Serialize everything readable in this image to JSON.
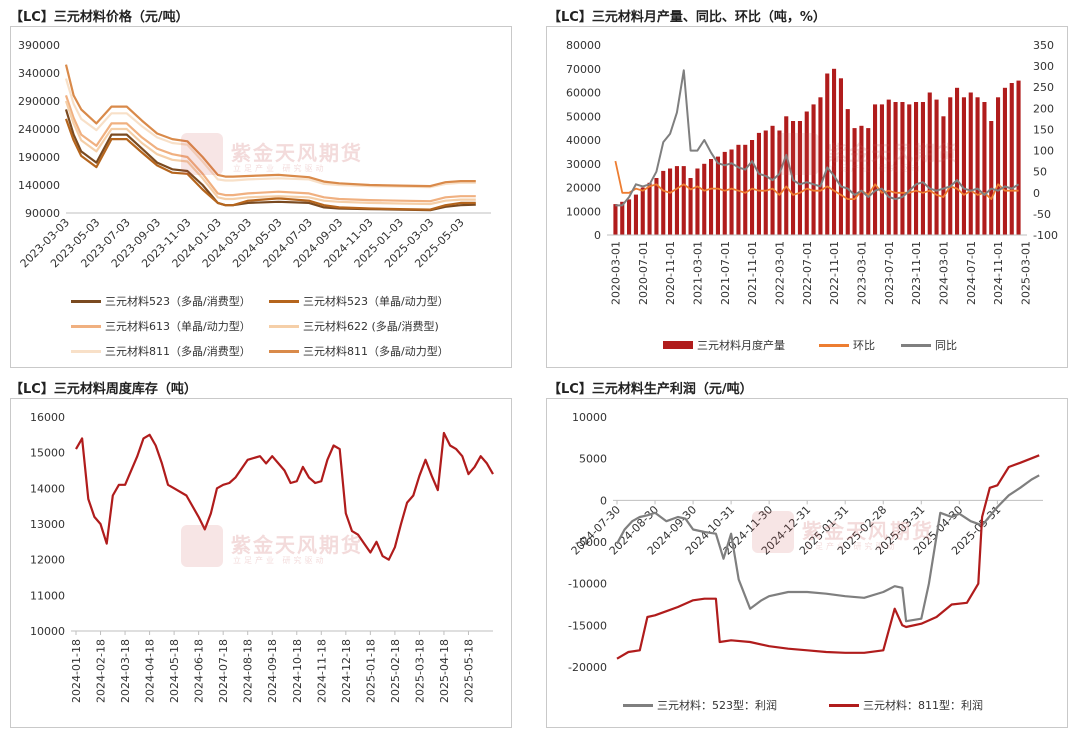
{
  "watermark": {
    "name": "紫金天风期货",
    "slogan": "立足产业 研究驱动"
  },
  "colors": {
    "dark_red": "#b01c1c",
    "orange": "#ed7d31",
    "gray": "#7f7f7f",
    "brown_dark": "#7a4a20",
    "brown": "#b5651d",
    "peach": "#f0b080",
    "light_peach": "#f5cfa8",
    "cream": "#f8e0c8",
    "copper": "#d98a4a"
  },
  "chart_data": [
    {
      "id": "price",
      "type": "line",
      "title": "【LC】三元材料价格（元/吨）",
      "ylim": [
        90000,
        390000
      ],
      "yticks": [
        90000,
        140000,
        190000,
        240000,
        290000,
        340000,
        390000
      ],
      "xticks": [
        "2023-03-03",
        "2023-05-03",
        "2023-07-03",
        "2023-09-03",
        "2023-11-03",
        "2024-01-03",
        "2024-03-03",
        "2024-05-03",
        "2024-07-03",
        "2024-09-03",
        "2024-11-03",
        "2025-01-03",
        "2025-03-03",
        "2025-05-03"
      ],
      "xrange": [
        0,
        28
      ],
      "series": [
        {
          "name": "三元材料523（多晶/消费型）",
          "color": "#7a4a20",
          "x": [
            0,
            0.5,
            1,
            2,
            3,
            4,
            5,
            6,
            7,
            8,
            9,
            10,
            10.5,
            11,
            12,
            14,
            16,
            17,
            18,
            20,
            22,
            24,
            25,
            26,
            27
          ],
          "values": [
            275000,
            230000,
            200000,
            180000,
            230000,
            230000,
            205000,
            180000,
            168000,
            165000,
            140000,
            108000,
            104000,
            104000,
            108000,
            110000,
            108000,
            100000,
            98000,
            97000,
            96000,
            95000,
            101000,
            104000,
            105000
          ]
        },
        {
          "name": "三元材料523（单晶/动力型）",
          "color": "#b5651d",
          "x": [
            0,
            0.5,
            1,
            2,
            3,
            4,
            5,
            6,
            7,
            8,
            9,
            10,
            10.5,
            11,
            12,
            14,
            16,
            17,
            18,
            20,
            22,
            24,
            25,
            26,
            27
          ],
          "values": [
            258000,
            220000,
            192000,
            172000,
            222000,
            222000,
            198000,
            175000,
            162000,
            160000,
            132000,
            108000,
            104000,
            104000,
            112000,
            116000,
            112000,
            104000,
            100000,
            98000,
            97000,
            96000,
            104000,
            108000,
            108000
          ]
        },
        {
          "name": "三元材料613（单晶/动力型）",
          "color": "#f0b080",
          "x": [
            0,
            0.5,
            1,
            2,
            3,
            4,
            5,
            6,
            7,
            8,
            9,
            10,
            10.5,
            11,
            12,
            14,
            16,
            17,
            18,
            20,
            22,
            24,
            25,
            26,
            27
          ],
          "values": [
            300000,
            260000,
            230000,
            210000,
            250000,
            250000,
            225000,
            205000,
            195000,
            190000,
            160000,
            125000,
            122000,
            122000,
            125000,
            128000,
            125000,
            118000,
            115000,
            113000,
            112000,
            111000,
            118000,
            120000,
            120000
          ]
        },
        {
          "name": "三元材料622 (多晶/消费型)",
          "color": "#f5cfa8",
          "x": [
            0,
            0.5,
            1,
            2,
            3,
            4,
            5,
            6,
            7,
            8,
            9,
            10,
            10.5,
            11,
            12,
            14,
            16,
            17,
            18,
            20,
            22,
            24,
            25,
            26,
            27
          ],
          "values": [
            290000,
            250000,
            220000,
            200000,
            240000,
            240000,
            215000,
            195000,
            185000,
            182000,
            152000,
            118000,
            115000,
            115000,
            118000,
            120000,
            118000,
            112000,
            110000,
            108000,
            107000,
            106000,
            112000,
            114000,
            114000
          ]
        },
        {
          "name": "三元材料811（多晶/消费型）",
          "color": "#f8e0c8",
          "x": [
            0,
            0.5,
            1,
            2,
            3,
            4,
            5,
            6,
            7,
            8,
            9,
            10,
            10.5,
            11,
            12,
            14,
            16,
            17,
            18,
            20,
            22,
            24,
            25,
            26,
            27
          ],
          "values": [
            330000,
            285000,
            258000,
            238000,
            268000,
            268000,
            245000,
            225000,
            215000,
            212000,
            182000,
            150000,
            148000,
            148000,
            150000,
            152000,
            150000,
            142000,
            140000,
            138000,
            137000,
            136000,
            142000,
            144000,
            144000
          ]
        },
        {
          "name": "三元材料811（多晶/动力型）",
          "color": "#d98a4a",
          "x": [
            0,
            0.5,
            1,
            2,
            3,
            4,
            5,
            6,
            7,
            8,
            9,
            10,
            10.5,
            11,
            12,
            14,
            16,
            17,
            18,
            20,
            22,
            24,
            25,
            26,
            27
          ],
          "values": [
            355000,
            300000,
            275000,
            250000,
            280000,
            280000,
            255000,
            232000,
            222000,
            218000,
            190000,
            158000,
            155000,
            155000,
            156000,
            158000,
            154000,
            146000,
            143000,
            140000,
            139000,
            138000,
            145000,
            147000,
            147000
          ]
        }
      ]
    },
    {
      "id": "output",
      "type": "bar",
      "title": "【LC】三元材料月产量、同比、环比（吨，%）",
      "ylim": [
        0,
        80000
      ],
      "yticks": [
        0,
        10000,
        20000,
        30000,
        40000,
        50000,
        60000,
        70000,
        80000
      ],
      "y2lim": [
        -100,
        350
      ],
      "y2ticks": [
        -100,
        -50,
        0,
        50,
        100,
        150,
        200,
        250,
        300,
        350
      ],
      "xticks": [
        "2020-03-01",
        "2020-07-01",
        "2020-11-01",
        "2021-03-01",
        "2021-07-01",
        "2021-11-01",
        "2022-03-01",
        "2022-07-01",
        "2022-11-01",
        "2023-03-01",
        "2023-07-01",
        "2023-11-01",
        "2024-03-01",
        "2024-07-01",
        "2024-11-01",
        "2025-03-01"
      ],
      "series": [
        {
          "name": "三元材料月度产量",
          "color": "#b01c1c",
          "axis": "left",
          "values": [
            13000,
            14000,
            15000,
            17000,
            20000,
            22000,
            24000,
            27000,
            28000,
            29000,
            29000,
            24000,
            28000,
            30000,
            32000,
            33000,
            35000,
            36000,
            38000,
            38000,
            40000,
            43000,
            44000,
            46000,
            44000,
            50000,
            48000,
            48000,
            52000,
            55000,
            58000,
            68000,
            70000,
            66000,
            53000,
            45000,
            46000,
            45000,
            55000,
            55000,
            57000,
            56000,
            56000,
            55000,
            56000,
            56000,
            60000,
            57000,
            50000,
            58000,
            62000,
            58000,
            60000,
            58000,
            56000,
            48000,
            58000,
            62000,
            64000,
            65000
          ]
        },
        {
          "name": "环比",
          "color": "#ed7d31",
          "axis": "right",
          "values": [
            75,
            0,
            0,
            10,
            5,
            15,
            20,
            5,
            0,
            10,
            20,
            8,
            15,
            5,
            10,
            10,
            5,
            10,
            5,
            0,
            10,
            5,
            5,
            10,
            -5,
            15,
            -5,
            0,
            10,
            5,
            5,
            15,
            5,
            -5,
            -15,
            -15,
            5,
            -5,
            20,
            0,
            5,
            0,
            0,
            0,
            5,
            0,
            5,
            -5,
            -10,
            15,
            10,
            -5,
            5,
            -5,
            0,
            -15,
            20,
            5,
            5,
            5
          ]
        },
        {
          "name": "同比",
          "color": "#7f7f7f",
          "axis": "right",
          "values": [
            -30,
            -30,
            -10,
            20,
            15,
            20,
            50,
            120,
            140,
            190,
            290,
            100,
            100,
            125,
            95,
            70,
            65,
            70,
            60,
            55,
            75,
            45,
            40,
            30,
            45,
            90,
            30,
            20,
            25,
            20,
            15,
            60,
            40,
            15,
            10,
            -5,
            5,
            -10,
            5,
            10,
            -10,
            -15,
            -10,
            5,
            20,
            25,
            10,
            5,
            10,
            15,
            30,
            10,
            5,
            10,
            -5,
            10,
            5,
            15,
            10,
            20
          ]
        }
      ]
    },
    {
      "id": "inventory",
      "type": "line",
      "title": "【LC】三元材料周度库存（吨）",
      "ylim": [
        10000,
        16000
      ],
      "yticks": [
        10000,
        11000,
        12000,
        13000,
        14000,
        15000,
        16000
      ],
      "xticks": [
        "2024-01-18",
        "2024-02-18",
        "2024-03-18",
        "2024-04-18",
        "2024-05-18",
        "2024-06-18",
        "2024-07-18",
        "2024-08-18",
        "2024-09-18",
        "2024-10-18",
        "2024-11-18",
        "2024-12-18",
        "2025-01-18",
        "2025-02-18",
        "2025-03-18",
        "2025-04-18",
        "2025-05-18"
      ],
      "xrange": [
        0,
        17
      ],
      "series": [
        {
          "name": "三元材料周度库存",
          "color": "#b01c1c",
          "x": [
            0,
            0.25,
            0.5,
            0.75,
            1,
            1.25,
            1.5,
            1.75,
            2,
            2.5,
            2.75,
            3,
            3.25,
            3.5,
            3.75,
            4,
            4.5,
            5,
            5.25,
            5.5,
            5.75,
            6,
            6.25,
            6.5,
            7,
            7.5,
            7.75,
            8,
            8.25,
            8.5,
            8.75,
            9,
            9.25,
            9.5,
            9.75,
            10,
            10.25,
            10.5,
            10.75,
            11,
            11.25,
            11.5,
            11.75,
            12,
            12.25,
            12.5,
            12.75,
            13,
            13.25,
            13.5,
            13.75,
            14,
            14.25,
            14.5,
            14.75,
            15,
            15.25,
            15.5,
            15.75,
            16,
            16.25,
            16.5,
            16.75,
            17
          ],
          "values": [
            15100,
            15400,
            13700,
            13200,
            13000,
            12450,
            13800,
            14100,
            14100,
            14900,
            15400,
            15500,
            15200,
            14700,
            14100,
            14000,
            13800,
            13200,
            12850,
            13300,
            14000,
            14100,
            14150,
            14300,
            14800,
            14900,
            14700,
            14900,
            14700,
            14500,
            14150,
            14200,
            14600,
            14300,
            14150,
            14200,
            14800,
            15200,
            15100,
            13300,
            12800,
            12700,
            12450,
            12200,
            12500,
            12100,
            12000,
            12350,
            13000,
            13600,
            13800,
            14350,
            14800,
            14350,
            13950,
            15550,
            15200,
            15100,
            14900,
            14400,
            14600,
            14900,
            14700,
            14400
          ]
        }
      ]
    },
    {
      "id": "profit",
      "type": "line",
      "title": "【LC】三元材料生产利润（元/吨）",
      "ylim": [
        -20000,
        10000
      ],
      "yticks": [
        -20000,
        -15000,
        -10000,
        -5000,
        0,
        5000,
        10000
      ],
      "xticks": [
        "2024-07-30",
        "2024-08-30",
        "2024-09-30",
        "2024-10-31",
        "2024-11-30",
        "2024-12-31",
        "2025-01-31",
        "2025-02-28",
        "2025-03-31",
        "2025-04-30",
        "2025-05-31"
      ],
      "xrange": [
        0,
        11.2
      ],
      "series": [
        {
          "name": "三元材料：523型：利润",
          "color": "#7f7f7f",
          "x": [
            0,
            0.2,
            0.4,
            0.6,
            0.8,
            1,
            1.3,
            1.6,
            1.8,
            2,
            2.3,
            2.6,
            2.8,
            3,
            3.2,
            3.5,
            3.8,
            4,
            4.5,
            5,
            5.5,
            6,
            6.5,
            7,
            7.3,
            7.5,
            7.6,
            8,
            8.2,
            8.5,
            8.8,
            9,
            9.3,
            9.6,
            10,
            10.3,
            10.6,
            10.9,
            11.1
          ],
          "values": [
            -5200,
            -3500,
            -2500,
            -2000,
            -1800,
            -1500,
            -2500,
            -2000,
            -2200,
            -3500,
            -3800,
            -4000,
            -7000,
            -4000,
            -9500,
            -13000,
            -12000,
            -11500,
            -11000,
            -11000,
            -11200,
            -11500,
            -11700,
            -11000,
            -10300,
            -10500,
            -14500,
            -14200,
            -10000,
            -1500,
            -2000,
            -1600,
            -2500,
            -3000,
            -800,
            600,
            1500,
            2500,
            3000
          ]
        },
        {
          "name": "三元材料：811型：利润",
          "color": "#b01c1c",
          "x": [
            0,
            0.3,
            0.6,
            0.8,
            1,
            1.3,
            1.6,
            2,
            2.3,
            2.6,
            2.7,
            3,
            3.5,
            4,
            4.5,
            5,
            5.5,
            6,
            6.5,
            7,
            7.3,
            7.5,
            7.6,
            8,
            8.4,
            8.8,
            9.2,
            9.5,
            9.6,
            9.8,
            10,
            10.3,
            10.6,
            11.1
          ],
          "values": [
            -19000,
            -18200,
            -18000,
            -14000,
            -13800,
            -13300,
            -12800,
            -12000,
            -11800,
            -11800,
            -17000,
            -16800,
            -17000,
            -17500,
            -17800,
            -18000,
            -18200,
            -18300,
            -18300,
            -18000,
            -13000,
            -15000,
            -15200,
            -14800,
            -14000,
            -12500,
            -12300,
            -10000,
            -2000,
            1500,
            1800,
            4000,
            4500,
            5400
          ]
        }
      ]
    }
  ]
}
